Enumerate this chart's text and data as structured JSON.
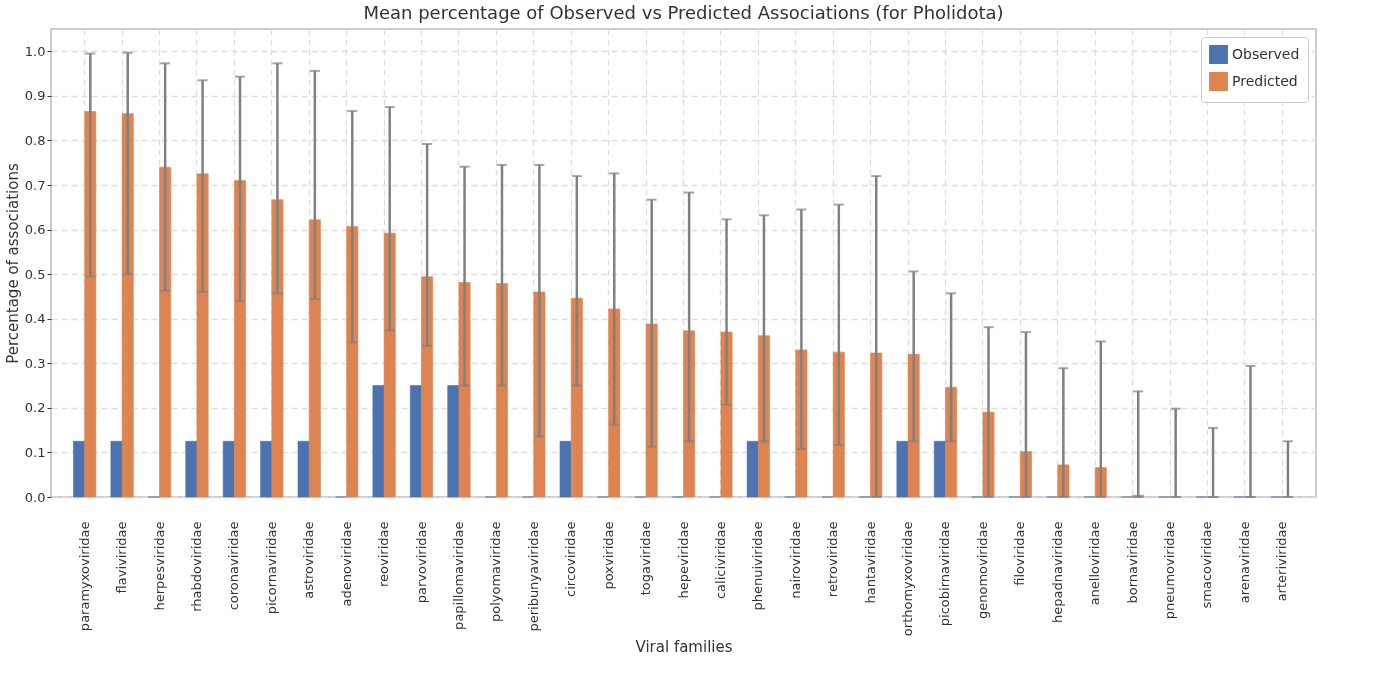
{
  "chart_data": {
    "type": "bar",
    "title": "Mean percentage of Observed vs Predicted Associations (for Pholidota)",
    "xlabel": "Viral families",
    "ylabel": "Percentage of associations",
    "categories": [
      "paramyxoviridae",
      "flaviviridae",
      "herpesviridae",
      "rhabdoviridae",
      "coronaviridae",
      "picornaviridae",
      "astroviridae",
      "adenoviridae",
      "reoviridae",
      "parvoviridae",
      "papillomaviridae",
      "polyomaviridae",
      "peribunyaviridae",
      "circoviridae",
      "poxviridae",
      "togaviridae",
      "hepeviridae",
      "caliciviridae",
      "phenuiviridae",
      "nairoviridae",
      "retroviridae",
      "hantaviridae",
      "orthomyxoviridae",
      "picobirnaviridae",
      "genomoviridae",
      "filoviridae",
      "hepadnaviridae",
      "anelloviridae",
      "bornaviridae",
      "pneumoviridae",
      "smacoviridae",
      "arenaviridae",
      "arteriviridae"
    ],
    "series": [
      {
        "name": "Observed",
        "color": "#4c72b0",
        "values": [
          0.125,
          0.125,
          0,
          0.125,
          0.125,
          0.125,
          0.125,
          0,
          0.25,
          0.25,
          0.25,
          0,
          0,
          0.125,
          0,
          0,
          0,
          0,
          0.125,
          0,
          0,
          0,
          0.125,
          0.125,
          0,
          0,
          0,
          0,
          0,
          0,
          0,
          0,
          0
        ]
      },
      {
        "name": "Predicted",
        "color": "#dd8452",
        "values": [
          0.865,
          0.86,
          0.74,
          0.725,
          0.71,
          0.667,
          0.622,
          0.607,
          0.592,
          0.494,
          0.481,
          0.479,
          0.46,
          0.446,
          0.422,
          0.388,
          0.373,
          0.37,
          0.362,
          0.33,
          0.325,
          0.323,
          0.32,
          0.246,
          0.19,
          0.102,
          0.072,
          0.066,
          0.004,
          0,
          0,
          0,
          0
        ],
        "errors": [
          [
            0.495,
            0.995
          ],
          [
            0.5,
            0.997
          ],
          [
            0.463,
            0.973
          ],
          [
            0.46,
            0.935
          ],
          [
            0.44,
            0.943
          ],
          [
            0.457,
            0.973
          ],
          [
            0.444,
            0.956
          ],
          [
            0.347,
            0.866
          ],
          [
            0.374,
            0.875
          ],
          [
            0.339,
            0.792
          ],
          [
            0.25,
            0.741
          ],
          [
            0.25,
            0.745
          ],
          [
            0.136,
            0.745
          ],
          [
            0.25,
            0.72
          ],
          [
            0.162,
            0.726
          ],
          [
            0.113,
            0.667
          ],
          [
            0.125,
            0.683
          ],
          [
            0.207,
            0.623
          ],
          [
            0.125,
            0.632
          ],
          [
            0.108,
            0.645
          ],
          [
            0.117,
            0.656
          ],
          [
            0,
            0.72
          ],
          [
            0.125,
            0.506
          ],
          [
            0.125,
            0.457
          ],
          [
            0,
            0.381
          ],
          [
            0,
            0.37
          ],
          [
            0,
            0.289
          ],
          [
            0,
            0.349
          ],
          [
            0,
            0.237
          ],
          [
            0,
            0.198
          ],
          [
            0,
            0.155
          ],
          [
            0,
            0.294
          ],
          [
            0,
            0.125
          ]
        ]
      }
    ],
    "ylim": [
      0,
      1.05
    ],
    "yticks": [
      {
        "value": 0,
        "label": "0.0"
      },
      0.1,
      0.2,
      0.3,
      0.4,
      0.5,
      0.6,
      0.7,
      0.8,
      0.9,
      {
        "value": 1,
        "label": "1.0"
      }
    ],
    "grid": true,
    "legend": "top right"
  }
}
